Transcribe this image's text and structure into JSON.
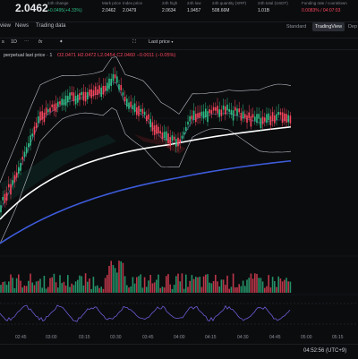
{
  "header": {
    "price": "2.0462",
    "stats": [
      {
        "label": "24h change",
        "value": "+0.0495(+4.33%)",
        "tone": "green"
      },
      {
        "label": "Mark price",
        "value": "2.0462",
        "tone": "plain"
      },
      {
        "label": "Index price",
        "value": "2.0479",
        "tone": "plain"
      },
      {
        "label": "24h high",
        "value": "2.0634",
        "tone": "plain"
      },
      {
        "label": "24h low",
        "value": "1.9457",
        "tone": "plain"
      },
      {
        "label": "24h quantity (XRP)",
        "value": "508.66M",
        "tone": "plain"
      },
      {
        "label": "24h total (USDT)",
        "value": "1.01B",
        "tone": "plain"
      },
      {
        "label": "Funding rate / countdown",
        "value": "0.0083% / 04:07:03",
        "tone": "red"
      }
    ]
  },
  "tabs": {
    "items": [
      "view",
      "News",
      "Trading data"
    ],
    "views": [
      "Standard",
      "TradingView",
      "Dep"
    ]
  },
  "toolbar": {
    "items": [
      "s",
      "1D",
      "⋯",
      "fx",
      "✦",
      "⛶"
    ],
    "price_selector": "Last price"
  },
  "legend": {
    "title": "perpetual last price · 1",
    "ohlc": "O2.0471 H2.0472 L2.0454 C2.0460 −0.0011 (−0.05%)"
  },
  "time_axis": {
    "ticks": [
      "02:45",
      "03:00",
      "03:15",
      "03:30",
      "03:45",
      "04:00",
      "04:15",
      "04:30",
      "04:45",
      "05:00",
      "05:15"
    ]
  },
  "footer": {
    "clock": "04:52:56 (UTC+9)"
  },
  "colors": {
    "up": "#2ebd85",
    "down": "#f6465d",
    "ma_white": "#ffffff",
    "ma_blue": "#3d5bd9",
    "oscillator": "#6e5bd6"
  }
}
